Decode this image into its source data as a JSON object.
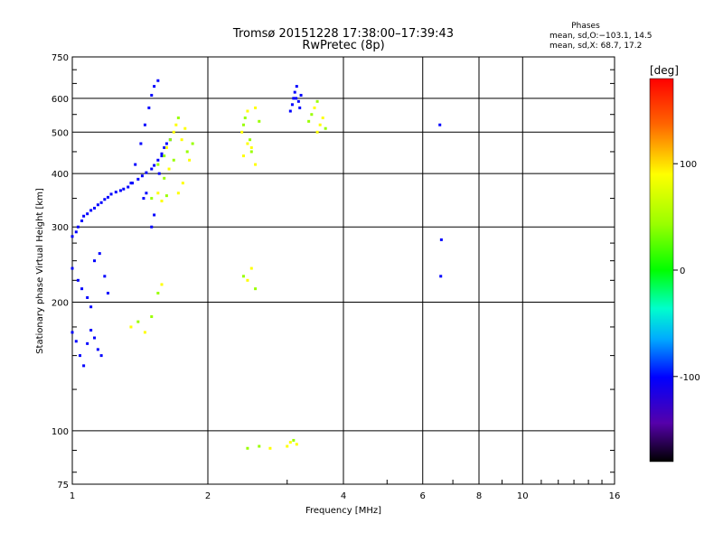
{
  "chart_data": {
    "type": "scatter",
    "title": "Tromsø 20151228 17:38:00–17:39:43",
    "subtitle": "RwPretec (8p)",
    "xlabel": "Frequency [MHz]",
    "ylabel": "Stationary phase Virtual Height [km]",
    "x_scale": "log",
    "y_scale": "log",
    "xlim": [
      1,
      16
    ],
    "ylim": [
      75,
      750
    ],
    "x_ticks": [
      1,
      2,
      4,
      6,
      8,
      10,
      16
    ],
    "y_ticks": [
      75,
      100,
      200,
      300,
      400,
      500,
      600,
      750
    ],
    "grid": true,
    "phases_info": {
      "title": "Phases",
      "line_o": "mean, sd,O:−103.1, 14.5",
      "line_x": "mean, sd,X:  68.7, 17.2"
    },
    "colorbar": {
      "label": "[deg]",
      "range": [
        -180,
        180
      ],
      "ticks": [
        100,
        0,
        -100
      ]
    },
    "series": [
      {
        "mode": "O",
        "phase_mean": -103.1,
        "phase_sd": 14.5,
        "x": [
          1.0,
          1.02,
          1.03,
          1.05,
          1.06,
          1.08,
          1.1,
          1.12,
          1.14,
          1.16,
          1.18,
          1.2,
          1.22,
          1.25,
          1.28,
          1.3,
          1.33,
          1.36,
          1.4,
          1.43,
          1.46,
          1.5,
          1.52,
          1.55,
          1.58,
          1.6,
          1.62,
          1.65,
          1.0,
          1.02,
          1.04,
          1.06,
          1.08,
          1.1,
          1.12,
          1.14,
          1.16,
          1.0,
          1.03,
          1.05,
          1.08,
          1.1,
          1.12,
          1.15,
          1.18,
          1.2,
          1.35,
          1.38,
          1.42,
          1.45,
          1.48,
          1.5,
          1.52,
          1.55,
          1.44,
          1.46,
          1.5,
          1.52,
          1.56,
          1.58,
          3.05,
          3.1,
          3.12,
          3.15,
          3.18,
          3.2,
          3.22,
          3.08,
          3.14,
          6.55,
          6.6,
          6.58
        ],
        "y": [
          285,
          292,
          300,
          310,
          318,
          322,
          328,
          332,
          338,
          342,
          348,
          352,
          358,
          362,
          365,
          368,
          372,
          380,
          388,
          395,
          402,
          410,
          418,
          430,
          445,
          460,
          470,
          480,
          170,
          162,
          150,
          142,
          160,
          172,
          165,
          155,
          150,
          240,
          225,
          215,
          205,
          195,
          250,
          260,
          230,
          210,
          380,
          420,
          470,
          520,
          570,
          610,
          640,
          660,
          350,
          360,
          300,
          320,
          400,
          440,
          560,
          600,
          620,
          640,
          590,
          570,
          610,
          580,
          600,
          520,
          280,
          230
        ]
      },
      {
        "mode": "X",
        "phase_mean": 68.7,
        "phase_sd": 17.2,
        "x": [
          1.55,
          1.6,
          1.62,
          1.65,
          1.68,
          1.7,
          1.72,
          1.75,
          1.78,
          1.8,
          1.82,
          1.85,
          1.6,
          1.64,
          1.68,
          1.72,
          1.76,
          1.5,
          1.55,
          1.58,
          1.62,
          2.38,
          2.4,
          2.42,
          2.45,
          2.48,
          2.5,
          2.55,
          2.6,
          2.4,
          2.45,
          2.5,
          2.55,
          3.35,
          3.4,
          3.45,
          3.5,
          3.55,
          3.6,
          3.65,
          3.5,
          1.35,
          1.4,
          1.45,
          1.5,
          1.55,
          1.58,
          2.4,
          2.45,
          2.5,
          2.55,
          3.0,
          3.05,
          3.1,
          3.15,
          2.45,
          2.6,
          2.75
        ],
        "y": [
          420,
          440,
          460,
          480,
          500,
          520,
          540,
          480,
          510,
          450,
          430,
          470,
          390,
          410,
          430,
          360,
          380,
          350,
          360,
          345,
          355,
          500,
          520,
          540,
          560,
          480,
          460,
          570,
          530,
          440,
          470,
          450,
          420,
          530,
          550,
          570,
          590,
          520,
          540,
          510,
          500,
          175,
          180,
          170,
          185,
          210,
          220,
          230,
          225,
          240,
          215,
          92,
          94,
          95,
          93,
          91,
          92,
          91
        ]
      }
    ]
  }
}
